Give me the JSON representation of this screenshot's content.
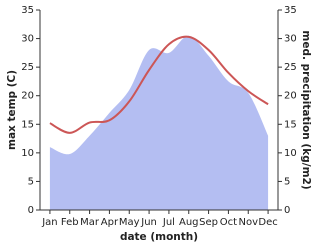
{
  "chart_data": {
    "type": "line-area",
    "xlabel": "date (month)",
    "ylabel": "max temp (C)",
    "y2label": "med. precipitation (kg/m2)",
    "categories": [
      "Jan",
      "Feb",
      "Mar",
      "Apr",
      "May",
      "Jun",
      "Jul",
      "Aug",
      "Sep",
      "Oct",
      "Nov",
      "Dec"
    ],
    "series": [
      {
        "type": "area",
        "axis": "y2",
        "color": "#b4bef2",
        "values": [
          11,
          9.8,
          13,
          17,
          21,
          28,
          27.5,
          30.5,
          27,
          22.5,
          20.5,
          13
        ]
      },
      {
        "type": "line",
        "axis": "y",
        "color": "#cc5656",
        "values": [
          15.2,
          13.5,
          15.3,
          15.7,
          19,
          24.5,
          29,
          30.3,
          28,
          24,
          20.8,
          18.5
        ]
      }
    ],
    "ylim": [
      0,
      35
    ],
    "yticks": [
      0,
      5,
      10,
      15,
      20,
      25,
      30,
      35
    ],
    "y2lim": [
      0,
      35
    ],
    "y2ticks": [
      0,
      5,
      10,
      15,
      20,
      25,
      30,
      35
    ]
  }
}
